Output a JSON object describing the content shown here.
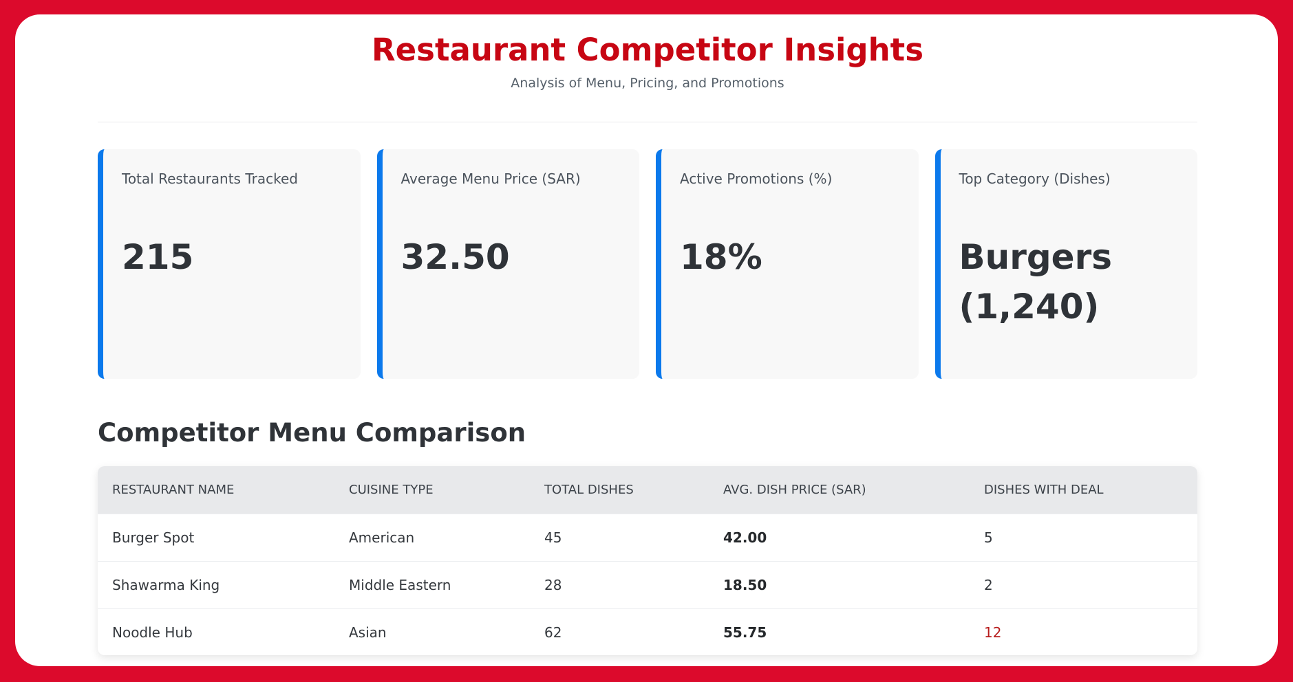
{
  "header": {
    "title": "Restaurant Competitor Insights",
    "subtitle": "Analysis of Menu, Pricing, and Promotions"
  },
  "cards": [
    {
      "label": "Total Restaurants Tracked",
      "value": "215"
    },
    {
      "label": "Average Menu Price (SAR)",
      "value": "32.50"
    },
    {
      "label": "Active Promotions (%)",
      "value": "18%"
    },
    {
      "label": "Top Category (Dishes)",
      "value": "Burgers (1,240)"
    }
  ],
  "comparison": {
    "title": "Competitor Menu Comparison",
    "columns": [
      "Restaurant Name",
      "Cuisine Type",
      "Total Dishes",
      "Avg. Dish Price (SAR)",
      "Dishes With Deal"
    ],
    "rows": [
      {
        "restaurant": "Burger Spot",
        "cuisine": "American",
        "total_dishes": "45",
        "avg_price": "42.00",
        "dishes_with_deal": "5"
      },
      {
        "restaurant": "Shawarma King",
        "cuisine": "Middle Eastern",
        "total_dishes": "28",
        "avg_price": "18.50",
        "dishes_with_deal": "2"
      },
      {
        "restaurant": "Noodle Hub",
        "cuisine": "Asian",
        "total_dishes": "62",
        "avg_price": "55.75",
        "dishes_with_deal": "12"
      }
    ]
  },
  "colors": {
    "outer_background": "#dc0a2c",
    "title_red": "#c70613",
    "card_accent": "#0b79ec",
    "card_background": "#f8f8f8",
    "table_header_background": "#e8e9eb",
    "highlighted_deal": "#b71c1c"
  }
}
